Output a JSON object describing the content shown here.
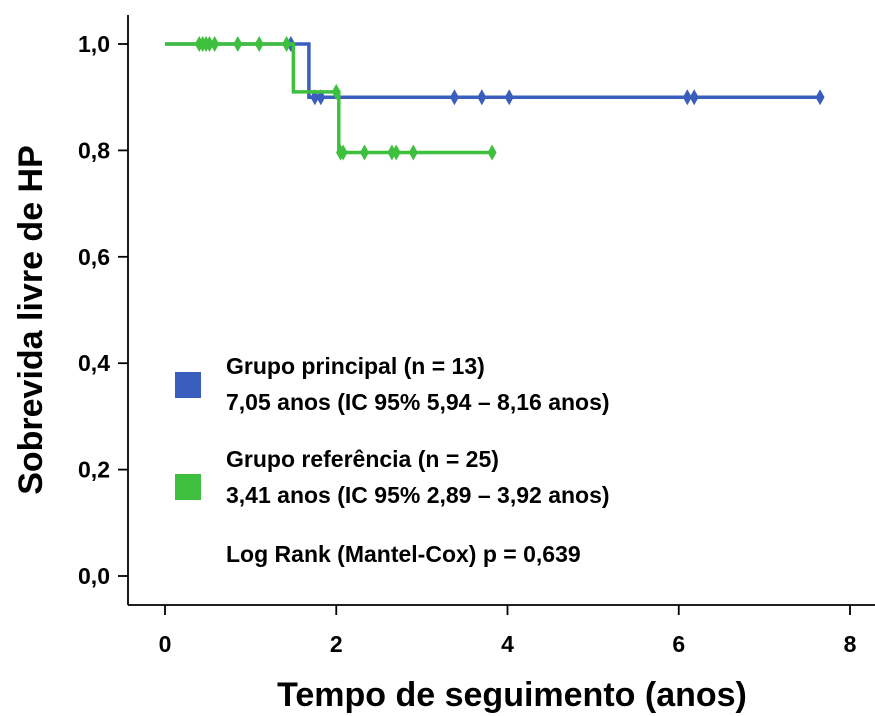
{
  "chart_data": {
    "type": "line",
    "subtype": "kaplan-meier",
    "xlabel": "Tempo de seguimento (anos)",
    "ylabel": "Sobrevida livre de HP",
    "xlim": [
      0,
      8
    ],
    "ylim": [
      0,
      1
    ],
    "x_ticks": [
      "0",
      "2",
      "4",
      "6",
      "8"
    ],
    "y_ticks": [
      "0,0",
      "0,2",
      "0,4",
      "0,6",
      "0,8",
      "1,0"
    ],
    "grid": false,
    "legend_position": "lower-left, inside plot",
    "series": [
      {
        "name": "Grupo principal (n = 13)",
        "summary": "7,05 anos (IC 95%  5,94 – 8,16 anos)",
        "color": "#3a5ebd",
        "steps": [
          [
            0,
            1.0
          ],
          [
            1.68,
            1.0
          ],
          [
            1.68,
            0.9
          ],
          [
            7.65,
            0.9
          ]
        ],
        "censored": [
          [
            1.47,
            1.0
          ],
          [
            1.75,
            0.9
          ],
          [
            1.82,
            0.9
          ],
          [
            3.38,
            0.9
          ],
          [
            3.7,
            0.9
          ],
          [
            4.02,
            0.9
          ],
          [
            6.1,
            0.9
          ],
          [
            6.18,
            0.9
          ],
          [
            7.65,
            0.9
          ]
        ]
      },
      {
        "name": "Grupo referência (n = 25)",
        "summary": "3,41 anos (IC 95%  2,89 – 3,92 anos)",
        "color": "#3ec03e",
        "steps": [
          [
            0,
            1.0
          ],
          [
            1.5,
            1.0
          ],
          [
            1.5,
            0.91
          ],
          [
            2.03,
            0.91
          ],
          [
            2.03,
            0.796
          ],
          [
            3.82,
            0.796
          ]
        ],
        "censored": [
          [
            0.4,
            1.0
          ],
          [
            0.44,
            1.0
          ],
          [
            0.48,
            1.0
          ],
          [
            0.52,
            1.0
          ],
          [
            0.58,
            1.0
          ],
          [
            0.85,
            1.0
          ],
          [
            1.1,
            1.0
          ],
          [
            1.42,
            1.0
          ],
          [
            2.0,
            0.91
          ],
          [
            2.05,
            0.796
          ],
          [
            2.08,
            0.796
          ],
          [
            2.33,
            0.796
          ],
          [
            2.65,
            0.796
          ],
          [
            2.7,
            0.796
          ],
          [
            2.9,
            0.796
          ],
          [
            3.82,
            0.796
          ]
        ]
      }
    ],
    "annotation": "Log Rank (Mantel-Cox) p = 0,639"
  }
}
